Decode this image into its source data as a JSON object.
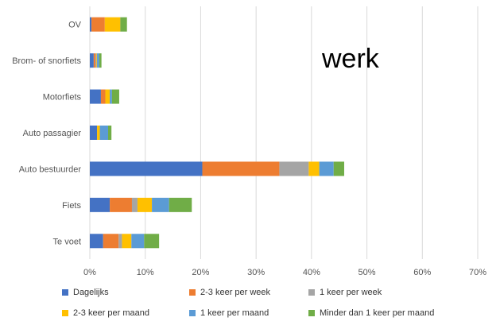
{
  "overlay_text": "werk",
  "chart_data": {
    "type": "bar",
    "orientation": "horizontal",
    "stacked": true,
    "title": "",
    "xlabel": "",
    "ylabel": "",
    "xlim": [
      0,
      70
    ],
    "x_ticks": [
      "0%",
      "10%",
      "20%",
      "30%",
      "40%",
      "50%",
      "60%",
      "70%"
    ],
    "grid": true,
    "legend_position": "bottom",
    "categories": [
      "OV",
      "Brom- of snorfiets",
      "Motorfiets",
      "Auto passagier",
      "Auto bestuurder",
      "Fiets",
      "Te voet"
    ],
    "series": [
      {
        "name": "Dagelijks",
        "color": "#4472C4",
        "values": [
          0.3,
          0.7,
          2.0,
          1.3,
          20.3,
          3.6,
          2.4
        ]
      },
      {
        "name": "2-3 keer per week",
        "color": "#ED7D31",
        "values": [
          2.4,
          0.3,
          0.8,
          0.0,
          13.9,
          4.0,
          2.8
        ]
      },
      {
        "name": "1 keer per week",
        "color": "#A5A5A5",
        "values": [
          0.0,
          0.2,
          0.0,
          0.0,
          5.3,
          1.0,
          0.6
        ]
      },
      {
        "name": "2-3 keer per maand",
        "color": "#FFC000",
        "values": [
          2.8,
          0.1,
          0.8,
          0.5,
          1.9,
          2.6,
          1.7
        ]
      },
      {
        "name": "1 keer per maand",
        "color": "#5B9BD5",
        "values": [
          0.0,
          0.4,
          0.4,
          1.5,
          2.6,
          3.1,
          2.3
        ]
      },
      {
        "name": "Minder dan 1 keer per maand",
        "color": "#70AD47",
        "values": [
          1.2,
          0.4,
          1.3,
          0.6,
          1.9,
          4.1,
          2.7
        ]
      }
    ]
  }
}
